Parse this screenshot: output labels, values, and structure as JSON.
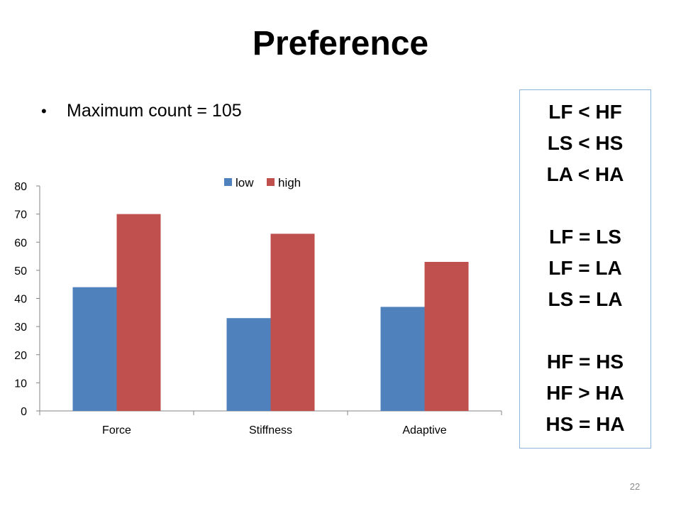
{
  "slide": {
    "title": "Preference",
    "bullet": "Maximum count = 105",
    "page_number": "22"
  },
  "stats_box": {
    "lines": [
      "LF < HF",
      "LS < HS",
      "LA < HA",
      "",
      "LF = LS",
      "LF = LA",
      "LS = LA",
      "",
      "HF = HS",
      "HF > HA",
      "HS = HA"
    ]
  },
  "colors": {
    "low": "#4f81bd",
    "high": "#c0504d",
    "axis": "#868686",
    "box_border": "#8fb3d9"
  },
  "chart_data": {
    "type": "bar",
    "categories": [
      "Force",
      "Stiffness",
      "Adaptive"
    ],
    "series": [
      {
        "name": "low",
        "values": [
          44,
          33,
          37
        ]
      },
      {
        "name": "high",
        "values": [
          70,
          63,
          53
        ]
      }
    ],
    "y_ticks": [
      "0",
      "10",
      "20",
      "30",
      "40",
      "50",
      "60",
      "70",
      "80"
    ],
    "ylim": [
      0,
      80
    ],
    "grid": false,
    "legend": "top-center",
    "title": "",
    "xlabel": "",
    "ylabel": ""
  }
}
